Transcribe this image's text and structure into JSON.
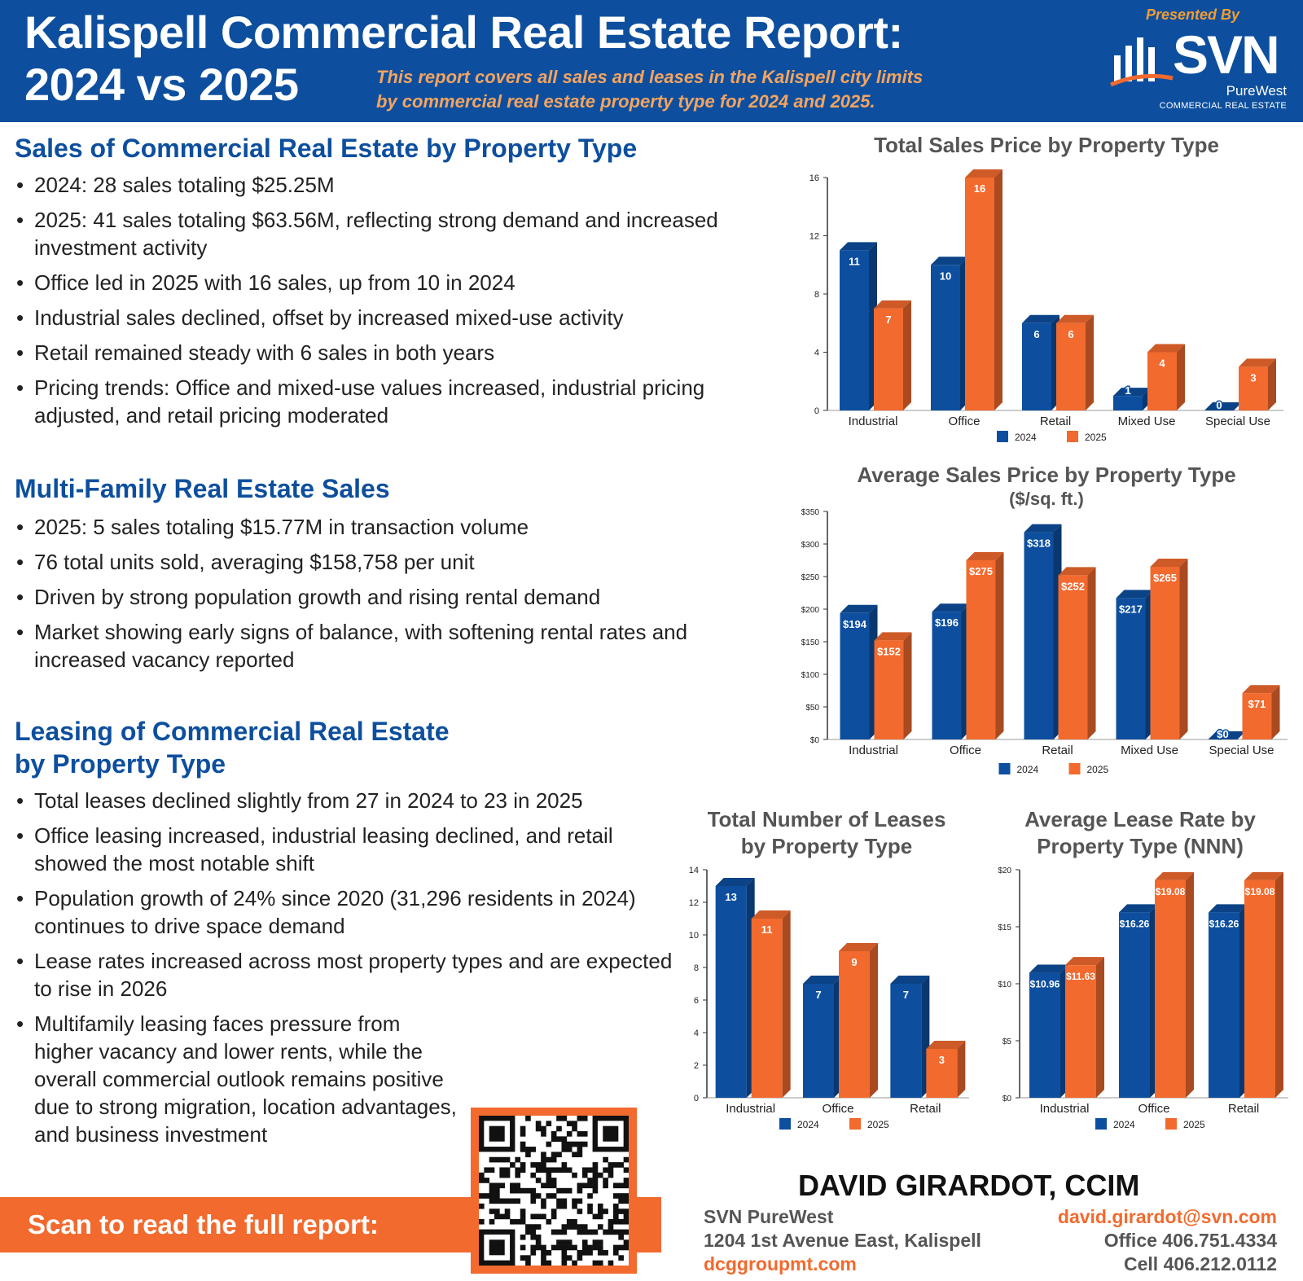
{
  "header": {
    "title_line1": "Kalispell Commercial Real Estate Report:",
    "title_line2": "2024 vs 2025",
    "subtitle_line1": "This report covers all sales and leases in the Kalispell city limits",
    "subtitle_line2": "by commercial real estate property type for 2024 and 2025.",
    "presented_by": "Presented By",
    "logo_main": "SVN",
    "logo_sub": "PureWest",
    "logo_tag": "COMMERCIAL REAL ESTATE"
  },
  "sales_section": {
    "heading": "Sales of Commercial Real Estate by Property Type",
    "bullets": [
      "2024: 28 sales totaling $25.25M",
      "2025: 41 sales totaling $63.56M, reflecting strong demand and increased investment activity",
      "Office led in 2025 with 16 sales, up from 10 in 2024",
      "Industrial sales declined, offset by increased mixed-use activity",
      "Retail remained steady with 6 sales in both years",
      "Pricing trends: Office and mixed-use values increased, industrial pricing adjusted, and retail pricing moderated"
    ]
  },
  "multifamily_section": {
    "heading": "Multi-Family Real Estate Sales",
    "bullets": [
      "2025: 5 sales totaling $15.77M in transaction volume",
      "76 total units sold, averaging $158,758 per unit",
      "Driven by strong population growth and rising rental demand",
      "Market showing early signs of balance, with softening rental rates and increased vacancy reported"
    ]
  },
  "leasing_section": {
    "heading_line1": "Leasing of Commercial Real Estate",
    "heading_line2": "by Property Type",
    "bullets": [
      "Total leases declined slightly from 27 in 2024 to 23 in 2025",
      "Office leasing increased, industrial leasing declined, and retail showed the most notable shift",
      "Population growth of 24% since 2020 (31,296 residents in 2024) continues to drive space demand",
      "Lease rates increased across most property types and are expected to rise in 2026",
      "Multifamily leasing faces pressure from higher vacancy and lower rents, while the overall commercial outlook remains positive due to strong migration, location advantages, and business investment"
    ]
  },
  "scan": {
    "label": "Scan to read the full report:"
  },
  "contact": {
    "name": "DAVID GIRARDOT, CCIM",
    "company": "SVN PureWest",
    "address": "1204 1st Avenue East, Kalispell",
    "website": "dcggroupmt.com",
    "email": "david.girardot@svn.com",
    "office": "Office 406.751.4334",
    "cell": "Cell 406.212.0112"
  },
  "colors": {
    "series_2024": "#0d4f9e",
    "series_2025": "#f26a2e",
    "brand_blue": "#0d4f9e",
    "brand_orange": "#f26a2e"
  },
  "chart_data": [
    {
      "id": "total_sales",
      "type": "bar",
      "title": "Total Sales Price by Property Type",
      "categories": [
        "Industrial",
        "Office",
        "Retail",
        "Mixed Use",
        "Special Use"
      ],
      "series": [
        {
          "name": "2024",
          "values": [
            11,
            10,
            6,
            1,
            0
          ],
          "labels": [
            "11",
            "10",
            "6",
            "1",
            "0"
          ]
        },
        {
          "name": "2025",
          "values": [
            7,
            16,
            6,
            4,
            3
          ],
          "labels": [
            "7",
            "16",
            "6",
            "4",
            "3"
          ]
        }
      ],
      "ylim": [
        0,
        16
      ],
      "yticks": [
        0,
        4,
        8,
        12,
        16
      ],
      "ytick_labels": [
        "0",
        "4",
        "8",
        "12",
        "16"
      ]
    },
    {
      "id": "avg_sales_price",
      "type": "bar",
      "title": "Average Sales Price by Property Type",
      "subtitle": "($/sq. ft.)",
      "categories": [
        "Industrial",
        "Office",
        "Retail",
        "Mixed Use",
        "Special Use"
      ],
      "series": [
        {
          "name": "2024",
          "values": [
            194,
            196,
            318,
            217,
            0
          ],
          "labels": [
            "$194",
            "$196",
            "$318",
            "$217",
            "$0"
          ]
        },
        {
          "name": "2025",
          "values": [
            152,
            275,
            252,
            265,
            71
          ],
          "labels": [
            "$152",
            "$275",
            "$252",
            "$265",
            "$71"
          ]
        }
      ],
      "ylim": [
        0,
        350
      ],
      "yticks": [
        0,
        50,
        100,
        150,
        200,
        250,
        300,
        350
      ],
      "ytick_labels": [
        "$0",
        "$50",
        "$100",
        "$150",
        "$200",
        "$250",
        "$300",
        "$350"
      ]
    },
    {
      "id": "total_leases",
      "type": "bar",
      "title_line1": "Total Number of Leases",
      "title_line2": "by Property Type",
      "categories": [
        "Industrial",
        "Office",
        "Retail"
      ],
      "series": [
        {
          "name": "2024",
          "values": [
            13,
            7,
            7
          ],
          "labels": [
            "13",
            "7",
            "7"
          ]
        },
        {
          "name": "2025",
          "values": [
            11,
            9,
            3
          ],
          "labels": [
            "11",
            "9",
            "3"
          ]
        }
      ],
      "ylim": [
        0,
        14
      ],
      "yticks": [
        0,
        2,
        4,
        6,
        8,
        10,
        12,
        14
      ],
      "ytick_labels": [
        "0",
        "2",
        "4",
        "6",
        "8",
        "10",
        "12",
        "14"
      ]
    },
    {
      "id": "avg_lease_rate",
      "type": "bar",
      "title_line1": "Average Lease Rate by",
      "title_line2": "Property Type (NNN)",
      "categories": [
        "Industrial",
        "Office",
        "Retail"
      ],
      "series": [
        {
          "name": "2024",
          "values": [
            10.96,
            16.26,
            16.26
          ],
          "labels": [
            "$10.96",
            "$16.26",
            "$16.26"
          ]
        },
        {
          "name": "2025",
          "values": [
            11.63,
            19.08,
            19.08
          ],
          "labels": [
            "$11.63",
            "$19.08",
            "$19.08"
          ]
        }
      ],
      "ylim": [
        0,
        20
      ],
      "yticks": [
        0,
        5,
        10,
        15,
        20
      ],
      "ytick_labels": [
        "$0",
        "$5",
        "$10",
        "$15",
        "$20"
      ]
    }
  ]
}
